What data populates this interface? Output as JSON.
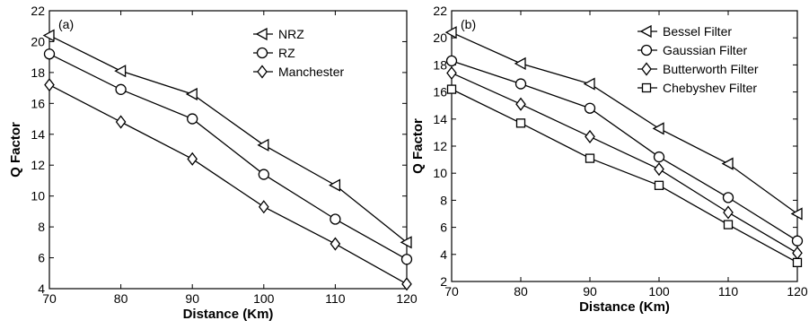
{
  "chart_data": [
    {
      "type": "line",
      "panel_label": "(a)",
      "xlabel": "Distance (Km)",
      "ylabel": "Q Factor",
      "xlim": [
        70,
        120
      ],
      "ylim": [
        4,
        22
      ],
      "xticks": [
        70,
        80,
        90,
        100,
        110,
        120
      ],
      "yticks": [
        4,
        6,
        8,
        10,
        12,
        14,
        16,
        18,
        20,
        22
      ],
      "grid": false,
      "legend_position": "top-right",
      "x": [
        70,
        80,
        90,
        100,
        110,
        120
      ],
      "series": [
        {
          "name": "NRZ",
          "marker": "triangle-left",
          "values": [
            20.4,
            18.1,
            16.6,
            13.3,
            10.7,
            7.0
          ]
        },
        {
          "name": "RZ",
          "marker": "circle",
          "values": [
            19.2,
            16.9,
            15.0,
            11.4,
            8.5,
            5.9
          ]
        },
        {
          "name": "Manchester",
          "marker": "diamond",
          "values": [
            17.2,
            14.8,
            12.4,
            9.3,
            6.9,
            4.3
          ]
        }
      ]
    },
    {
      "type": "line",
      "panel_label": "(b)",
      "xlabel": "Distance (Km)",
      "ylabel": "Q Factor",
      "xlim": [
        70,
        120
      ],
      "ylim": [
        2,
        22
      ],
      "xticks": [
        70,
        80,
        90,
        100,
        110,
        120
      ],
      "yticks": [
        2,
        4,
        6,
        8,
        10,
        12,
        14,
        16,
        18,
        20,
        22
      ],
      "grid": false,
      "legend_position": "top-right",
      "x": [
        70,
        80,
        90,
        100,
        110,
        120
      ],
      "series": [
        {
          "name": "Bessel Filter",
          "marker": "triangle-left",
          "values": [
            20.4,
            18.1,
            16.6,
            13.3,
            10.7,
            7.0
          ]
        },
        {
          "name": "Gaussian Filter",
          "marker": "circle",
          "values": [
            18.3,
            16.6,
            14.8,
            11.2,
            8.2,
            5.0
          ]
        },
        {
          "name": "Butterworth Filter",
          "marker": "diamond",
          "values": [
            17.4,
            15.1,
            12.7,
            10.3,
            7.1,
            4.1
          ]
        },
        {
          "name": "Chebyshev Filter",
          "marker": "square",
          "values": [
            16.2,
            13.7,
            11.1,
            9.1,
            6.2,
            3.4
          ]
        }
      ]
    }
  ]
}
